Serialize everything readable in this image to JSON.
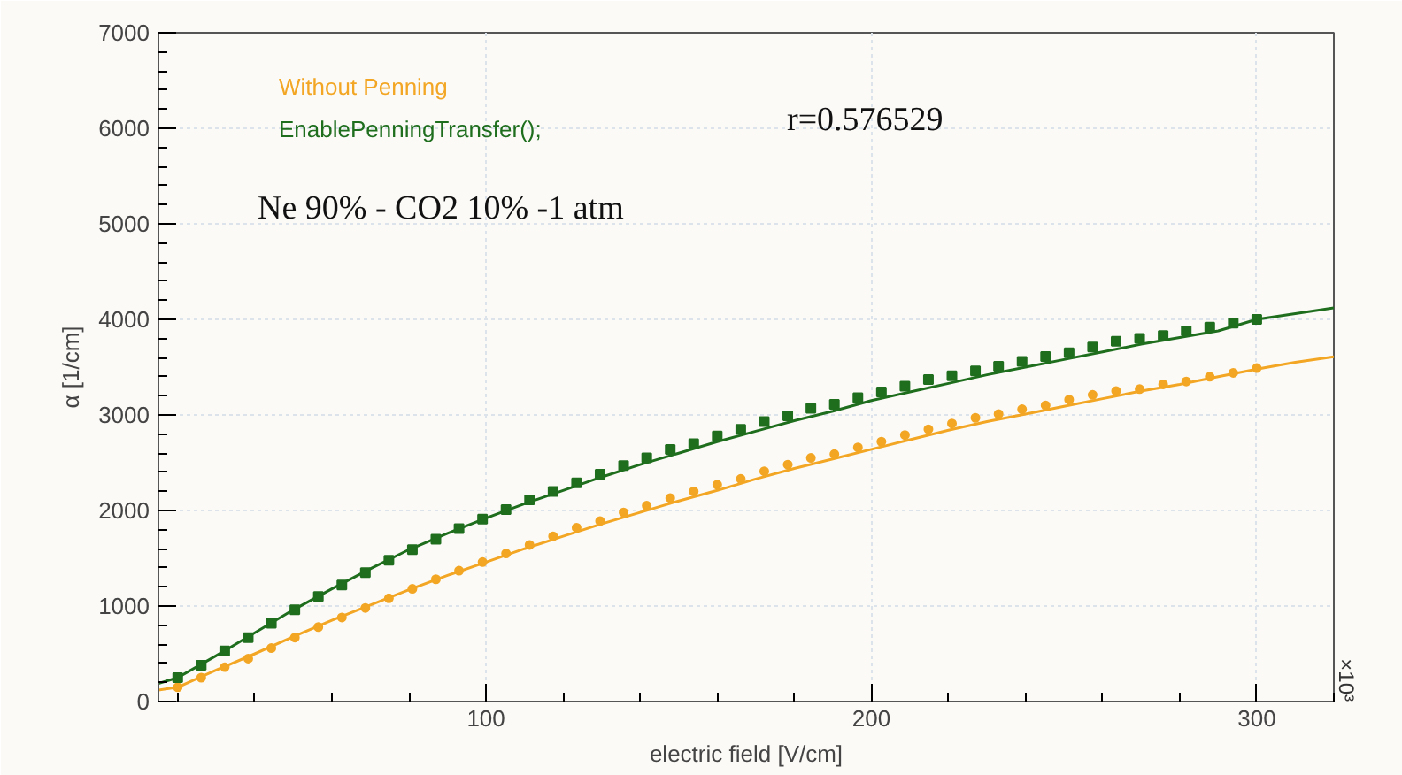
{
  "chart_data": {
    "type": "line",
    "xlabel": "electric field [V/cm]",
    "ylabel": "α [1/cm]",
    "xlim": [
      15,
      320
    ],
    "ylim": [
      0,
      7000
    ],
    "xticks": [
      100,
      200,
      300
    ],
    "yticks": [
      0,
      1000,
      2000,
      3000,
      4000,
      5000,
      6000,
      7000
    ],
    "grid": true,
    "legend": "top left",
    "annotations": [
      "r=0.576529",
      "Ne 90% - CO2 10% -1 atm",
      "×10³"
    ],
    "series": [
      {
        "color": "#f2a623",
        "x": [
          15,
          20,
          30,
          40,
          50,
          60,
          70,
          80,
          90,
          100,
          110,
          120,
          130,
          140,
          150,
          160,
          170,
          180,
          190,
          200,
          210,
          220,
          230,
          240,
          250,
          260,
          270,
          280,
          290,
          300,
          310,
          320
        ],
        "values": [
          120,
          150,
          330,
          500,
          680,
          850,
          1010,
          1170,
          1320,
          1460,
          1600,
          1730,
          1860,
          1980,
          2100,
          2210,
          2330,
          2440,
          2540,
          2640,
          2740,
          2840,
          2930,
          3010,
          3090,
          3170,
          3250,
          3320,
          3400,
          3480,
          3550,
          3610
        ]
      },
      {
        "color": "#1e6e1e",
        "x": [
          15,
          20,
          30,
          40,
          50,
          60,
          70,
          80,
          90,
          100,
          110,
          120,
          130,
          140,
          150,
          160,
          170,
          180,
          190,
          200,
          210,
          220,
          230,
          240,
          250,
          260,
          270,
          280,
          290,
          300,
          310,
          320
        ],
        "values": [
          190,
          250,
          480,
          720,
          960,
          1180,
          1390,
          1590,
          1760,
          1920,
          2070,
          2210,
          2350,
          2480,
          2600,
          2720,
          2830,
          2940,
          3040,
          3150,
          3240,
          3330,
          3420,
          3500,
          3580,
          3660,
          3740,
          3810,
          3880,
          4000,
          4060,
          4120
        ]
      },
      {
        "type": "scatter",
        "name": "Without Penning",
        "color": "#f2a623",
        "marker": "circle",
        "x": [
          20.0,
          26.1,
          32.2,
          38.3,
          44.3,
          50.4,
          56.5,
          62.6,
          68.7,
          74.8,
          80.9,
          87.0,
          93.0,
          99.1,
          105.2,
          111.3,
          117.4,
          123.5,
          129.6,
          135.7,
          141.7,
          147.8,
          153.9,
          160.0,
          166.1,
          172.2,
          178.3,
          184.3,
          190.4,
          196.5,
          202.6,
          208.7,
          214.8,
          220.9,
          227.0,
          233.0,
          239.1,
          245.2,
          251.3,
          257.4,
          263.5,
          269.6,
          275.7,
          281.7,
          287.8,
          293.9,
          300.0
        ],
        "values": [
          150,
          250,
          360,
          450,
          560,
          670,
          780,
          880,
          980,
          1080,
          1180,
          1280,
          1370,
          1460,
          1550,
          1640,
          1730,
          1820,
          1890,
          1980,
          2050,
          2130,
          2200,
          2270,
          2330,
          2410,
          2480,
          2550,
          2590,
          2660,
          2720,
          2790,
          2850,
          2910,
          2970,
          3010,
          3060,
          3100,
          3160,
          3210,
          3250,
          3270,
          3320,
          3350,
          3400,
          3440,
          3490
        ]
      },
      {
        "type": "scatter",
        "name": "EnablePenningTransfer();",
        "color": "#1e6e1e",
        "marker": "square",
        "x": [
          20.0,
          26.1,
          32.2,
          38.3,
          44.3,
          50.4,
          56.5,
          62.6,
          68.7,
          74.8,
          80.9,
          87.0,
          93.0,
          99.1,
          105.2,
          111.3,
          117.4,
          123.5,
          129.6,
          135.7,
          141.7,
          147.8,
          153.9,
          160.0,
          166.1,
          172.2,
          178.3,
          184.3,
          190.4,
          196.5,
          202.6,
          208.7,
          214.8,
          220.9,
          227.0,
          233.0,
          239.1,
          245.2,
          251.3,
          257.4,
          263.5,
          269.6,
          275.7,
          281.7,
          287.8,
          293.9,
          300.0
        ],
        "values": [
          250,
          380,
          530,
          670,
          820,
          960,
          1100,
          1220,
          1350,
          1480,
          1590,
          1700,
          1810,
          1910,
          2010,
          2110,
          2200,
          2290,
          2380,
          2470,
          2550,
          2640,
          2700,
          2780,
          2850,
          2930,
          2990,
          3070,
          3110,
          3180,
          3240,
          3300,
          3370,
          3410,
          3460,
          3510,
          3560,
          3610,
          3650,
          3710,
          3770,
          3800,
          3830,
          3880,
          3920,
          3960,
          4000
        ]
      }
    ]
  }
}
